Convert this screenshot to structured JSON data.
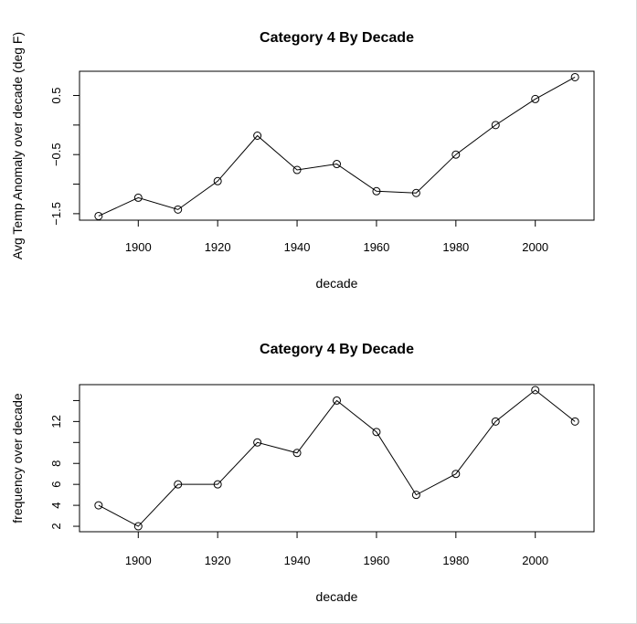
{
  "chart_data": [
    {
      "type": "line",
      "title": "Category 4 By Decade",
      "xlabel": "decade",
      "ylabel": "Avg Temp Anomaly over decade (deg F)",
      "x": [
        1890,
        1900,
        1910,
        1920,
        1930,
        1940,
        1950,
        1960,
        1970,
        1980,
        1990,
        2000,
        2010
      ],
      "series": [
        {
          "values": [
            -1.54,
            -1.23,
            -1.43,
            -0.95,
            -0.18,
            -0.76,
            -0.66,
            -1.12,
            -1.15,
            -0.5,
            0.0,
            0.44,
            0.81
          ]
        }
      ],
      "xticks": [
        1900,
        1920,
        1940,
        1960,
        1980,
        2000
      ],
      "xtick_labels": [
        "1900",
        "1920",
        "1940",
        "1960",
        "1980",
        "2000"
      ],
      "yticks": [
        -1.5,
        -1.0,
        -0.5,
        0.0,
        0.5
      ],
      "ytick_labels": [
        "−1.5",
        "",
        "−0.5",
        "",
        "0.5"
      ],
      "xlim": [
        1885.2,
        2014.8
      ],
      "ylim": [
        -1.61,
        0.91
      ],
      "markers": "open-circle",
      "grid": false
    },
    {
      "type": "line",
      "title": "Category 4 By Decade",
      "xlabel": "decade",
      "ylabel": "frequency over decade",
      "x": [
        1890,
        1900,
        1910,
        1920,
        1930,
        1940,
        1950,
        1960,
        1970,
        1980,
        1990,
        2000,
        2010
      ],
      "series": [
        {
          "values": [
            4,
            2,
            6,
            6,
            10,
            9,
            14,
            11,
            5,
            7,
            12,
            15,
            12
          ]
        }
      ],
      "xticks": [
        1900,
        1920,
        1940,
        1960,
        1980,
        2000
      ],
      "xtick_labels": [
        "1900",
        "1920",
        "1940",
        "1960",
        "1980",
        "2000"
      ],
      "yticks": [
        2,
        4,
        6,
        8,
        10,
        12,
        14
      ],
      "ytick_labels": [
        "2",
        "4",
        "6",
        "8",
        "",
        "12",
        ""
      ],
      "xlim": [
        1885.2,
        2014.8
      ],
      "ylim": [
        1.48,
        15.52
      ],
      "markers": "open-circle",
      "grid": false
    }
  ]
}
